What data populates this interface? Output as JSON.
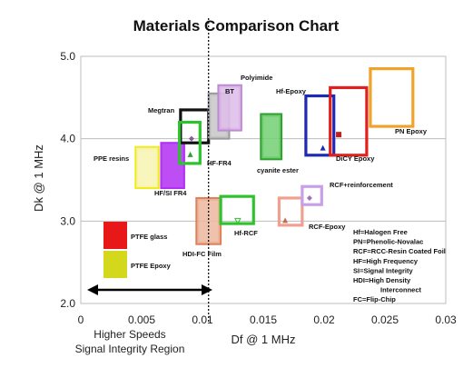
{
  "chart_data": {
    "type": "scatter",
    "title": "Materials Comparison Chart",
    "xlabel": "Df @ 1 MHz",
    "ylabel": "Dk @ 1 MHz",
    "xlim": [
      0,
      0.03
    ],
    "ylim": [
      2.0,
      5.0
    ],
    "x_ticks": [
      0,
      0.005,
      0.01,
      0.015,
      0.02,
      0.025,
      0.03
    ],
    "x_tick_labels": [
      "0",
      "0.005",
      "0.01",
      "0.015",
      "0.02",
      "0.025",
      "0.03"
    ],
    "y_ticks": [
      2.0,
      3.0,
      4.0,
      5.0
    ],
    "y_tick_labels": [
      "2.0",
      "3.0",
      "4.0",
      "5.0"
    ],
    "grid": "horizontal",
    "divider_x": 0.0105,
    "region_label": [
      "Higher Speeds",
      "Signal Integrity Region"
    ],
    "materials": [
      {
        "name": "PPE resins",
        "df": [
          0.0045,
          0.0064
        ],
        "dk": [
          3.4,
          3.9
        ],
        "color": "#f0ec1c",
        "fill": "#f6f2a0",
        "style": "filled",
        "label": "PPE resins"
      },
      {
        "name": "HF/SI FR4",
        "df": [
          0.0066,
          0.0085
        ],
        "dk": [
          3.4,
          3.95
        ],
        "color": "#b12ff2",
        "fill": "#b12ff2",
        "style": "filled",
        "label": "HF/SI FR4"
      },
      {
        "name": "Megtran",
        "df": [
          0.0082,
          0.0105
        ],
        "dk": [
          3.95,
          4.35
        ],
        "color": "#111111",
        "fill": "none",
        "style": "outline",
        "label": "Megtran"
      },
      {
        "name": "HF-FR4",
        "df": [
          0.0081,
          0.0098
        ],
        "dk": [
          3.7,
          4.2
        ],
        "color": "#2fc22f",
        "fill": "none",
        "style": "outline",
        "label": "HF-FR4"
      },
      {
        "name": "BT",
        "df": [
          0.0105,
          0.0122
        ],
        "dk": [
          4.0,
          4.55
        ],
        "color": "#999999",
        "fill": "#bbbbbb",
        "style": "filled",
        "label": "BT"
      },
      {
        "name": "Polyimide",
        "df": [
          0.0113,
          0.0132
        ],
        "dk": [
          4.1,
          4.65
        ],
        "color": "#bf89d6",
        "fill": "#d6aee4",
        "style": "filled",
        "label": "Polyimide"
      },
      {
        "name": "cyanite ester",
        "df": [
          0.0148,
          0.0165
        ],
        "dk": [
          3.75,
          4.3
        ],
        "color": "#2fa02f",
        "fill": "#55c655",
        "style": "filled",
        "label": "cyanite ester"
      },
      {
        "name": "Hf-Epoxy",
        "df": [
          0.0185,
          0.0208
        ],
        "dk": [
          3.8,
          4.52
        ],
        "color": "#1d2ab5",
        "fill": "none",
        "style": "outline",
        "label": "Hf-Epoxy"
      },
      {
        "name": "DiCY Epoxy",
        "df": [
          0.0205,
          0.0235
        ],
        "dk": [
          3.8,
          4.62
        ],
        "color": "#e0201c",
        "fill": "none",
        "style": "outline",
        "label": "DiCY Epoxy"
      },
      {
        "name": "PN Epoxy",
        "df": [
          0.0238,
          0.0273
        ],
        "dk": [
          4.15,
          4.85
        ],
        "color": "#f0a22a",
        "fill": "none",
        "style": "outline",
        "label": "PN Epoxy"
      },
      {
        "name": "HDI-FC Film",
        "df": [
          0.0095,
          0.0115
        ],
        "dk": [
          2.72,
          3.28
        ],
        "color": "#e0805a",
        "fill": "#e8a88a",
        "style": "filled",
        "label": "HDI-FC Film"
      },
      {
        "name": "Hf-RCF",
        "df": [
          0.0115,
          0.0142
        ],
        "dk": [
          2.97,
          3.3
        ],
        "color": "#2fc22f",
        "fill": "none",
        "style": "outline",
        "label": "Hf-RCF"
      },
      {
        "name": "RCF-Epoxy",
        "df": [
          0.0163,
          0.0182
        ],
        "dk": [
          2.95,
          3.28
        ],
        "color": "#f0a090",
        "fill": "none",
        "style": "outline",
        "label": "RCF-Epoxy"
      },
      {
        "name": "RCF+reinforcement",
        "df": [
          0.0182,
          0.0198
        ],
        "dk": [
          3.2,
          3.42
        ],
        "color": "#c8a0e8",
        "fill": "none",
        "style": "outline",
        "label": "RCF+reinforcement"
      }
    ],
    "markers": [
      {
        "df": 0.0091,
        "dk": 4.0,
        "symbol": "diamond",
        "color": "#8a5aa0"
      },
      {
        "df": 0.009,
        "dk": 3.81,
        "symbol": "triangle",
        "color": "#2fa02f"
      },
      {
        "df": 0.0129,
        "dk": 3.0,
        "symbol": "triangle-down",
        "color": "#2fc22f"
      },
      {
        "df": 0.0168,
        "dk": 3.01,
        "symbol": "triangle",
        "color": "#c07050"
      },
      {
        "df": 0.0188,
        "dk": 3.28,
        "symbol": "diamond",
        "color": "#a070c0"
      },
      {
        "df": 0.0199,
        "dk": 3.89,
        "symbol": "triangle",
        "color": "#1d2ab5"
      },
      {
        "df": 0.0212,
        "dk": 4.05,
        "symbol": "square",
        "color": "#c0201c"
      }
    ],
    "legend": [
      {
        "label": "PTFE glass",
        "color": "#e81818"
      },
      {
        "label": "PTFE Epoxy",
        "color": "#d4d81c"
      }
    ],
    "abbreviations": [
      "Hf=Halogen Free",
      "PN=Phenolic-Novalac",
      "RCF=RCC-Resin Coated Foil",
      "HF=High Frequency",
      "SI=Signal Integrity",
      "HDI=High Density",
      "Interconnect",
      "FC=Flip-Chip"
    ]
  }
}
